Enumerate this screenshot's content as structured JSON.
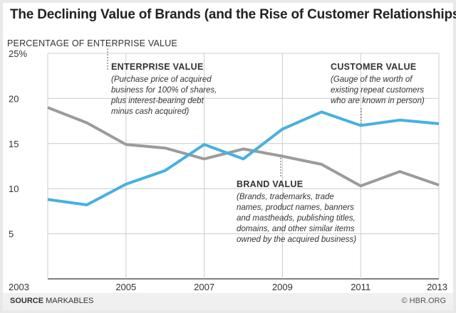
{
  "title": "The Declining Value of Brands (and the Rise of Customer Relationships)",
  "source_label": "SOURCE",
  "source_value": "MARKABLES",
  "credit": "© HBR.ORG",
  "colors": {
    "enterprise": "#9b9b9b",
    "customer": "#46b1e1",
    "grid": "#cccccc",
    "axis": "#333333"
  },
  "chart_data": {
    "type": "line",
    "ylabel": "PERCENTAGE OF ENTERPRISE VALUE",
    "ylim": [
      0,
      25
    ],
    "xlim": [
      2003,
      2013
    ],
    "y_ticks": [
      5,
      10,
      15,
      20,
      25
    ],
    "y_tick_labels": [
      "5",
      "10",
      "15",
      "20",
      "25%"
    ],
    "x_ticks": [
      2003,
      2005,
      2007,
      2009,
      2011,
      2013
    ],
    "x_tick_labels": [
      "2003",
      "2005",
      "2007",
      "2009",
      "2011",
      "2013"
    ],
    "grid": true,
    "series": [
      {
        "key": "brand",
        "x": [
          2003,
          2004,
          2005,
          2006,
          2007,
          2008,
          2009,
          2010,
          2011,
          2012,
          2013
        ],
        "values": [
          19.0,
          17.3,
          14.9,
          14.5,
          13.3,
          14.4,
          13.6,
          12.7,
          10.3,
          11.9,
          10.4
        ]
      },
      {
        "key": "customer",
        "x": [
          2003,
          2004,
          2005,
          2006,
          2007,
          2008,
          2009,
          2010,
          2011,
          2012,
          2013
        ],
        "values": [
          8.8,
          8.2,
          10.5,
          12.0,
          14.9,
          13.3,
          16.6,
          18.5,
          17.0,
          17.6,
          17.2
        ]
      }
    ],
    "annotations": {
      "enterprise": {
        "heading": "ENTERPRISE VALUE",
        "lines": [
          "(Purchase price of acquired",
          "business for 100% of shares,",
          "plus interest-bearing debt",
          "minus cash acquired)"
        ]
      },
      "customer": {
        "heading": "CUSTOMER VALUE",
        "lines": [
          "(Gauge of the worth of",
          "existing repeat customers",
          "who are known in person)"
        ]
      },
      "brand": {
        "heading": "BRAND VALUE",
        "lines": [
          "(Brands, trademarks, trade",
          "names, product names, banners",
          "and mastheads, publishing titles,",
          "domains, and other similar items",
          "owned by the acquired business)"
        ]
      }
    }
  }
}
